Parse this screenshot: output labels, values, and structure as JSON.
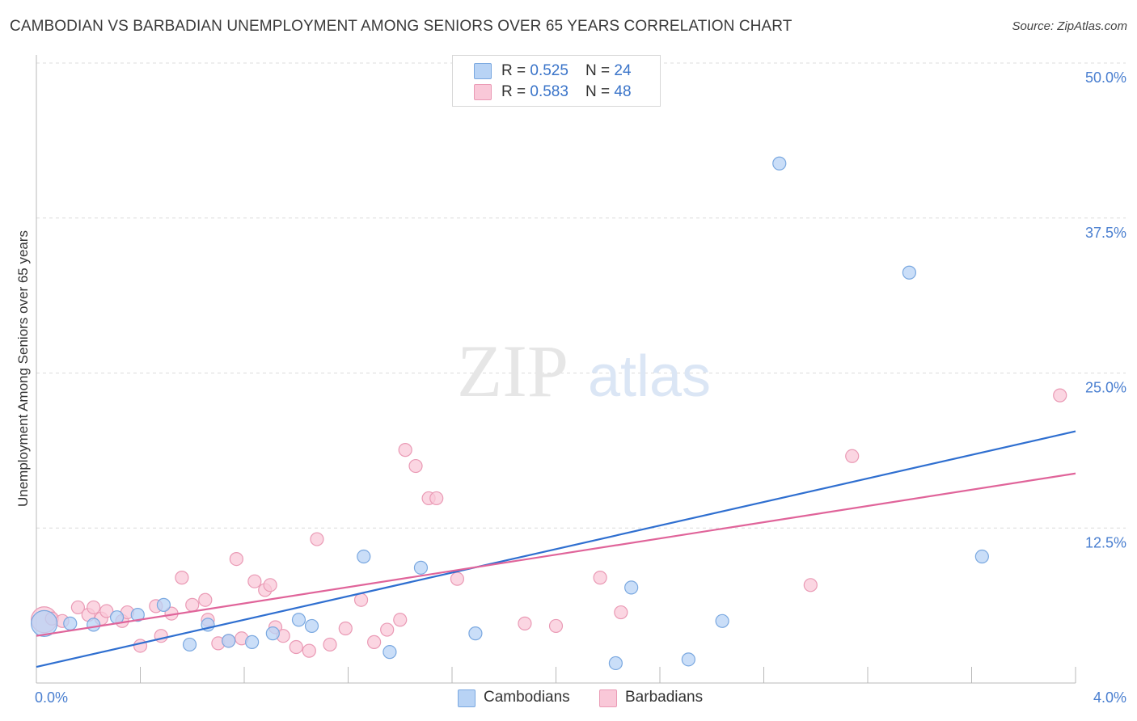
{
  "title": "CAMBODIAN VS BARBADIAN UNEMPLOYMENT AMONG SENIORS OVER 65 YEARS CORRELATION CHART",
  "source": "Source: ZipAtlas.com",
  "watermark": {
    "zip": "ZIP",
    "atlas": "atlas"
  },
  "colors": {
    "cambodians_fill": "#b8d3f5",
    "cambodians_stroke": "#7aa8e0",
    "cambodians_line": "#2f6fd0",
    "barbadians_fill": "#f9c8d8",
    "barbadians_stroke": "#ea9ab5",
    "barbadians_line": "#e0649a",
    "tick_text": "#4a7fd0",
    "grid": "#dcdcdc"
  },
  "legend": {
    "cambodians": {
      "r_label": "R = ",
      "r_value": "0.525",
      "n_label": "N = ",
      "n_value": "24"
    },
    "barbadians": {
      "r_label": "R = ",
      "r_value": "0.583",
      "n_label": "N = ",
      "n_value": "48"
    }
  },
  "bottom_legend": {
    "cambodians": "Cambodians",
    "barbadians": "Barbadians"
  },
  "chart_data": {
    "type": "scatter",
    "title": "CAMBODIAN VS BARBADIAN UNEMPLOYMENT AMONG SENIORS OVER 65 YEARS CORRELATION CHART",
    "xlabel": "",
    "ylabel": "Unemployment Among Seniors over 65 years",
    "xlim": [
      0,
      4.0
    ],
    "ylim": [
      0,
      50
    ],
    "x_tick_labels": [
      "0.0%",
      "4.0%"
    ],
    "y_ticks": [
      12.5,
      25.0,
      37.5,
      50.0
    ],
    "y_tick_labels": [
      "12.5%",
      "25.0%",
      "37.5%",
      "50.0%"
    ],
    "grid": true,
    "series": [
      {
        "name": "Cambodians",
        "r": 0.525,
        "n": 24,
        "trend": {
          "x": [
            0,
            4.0
          ],
          "y": [
            1.3,
            20.3
          ]
        },
        "points": [
          {
            "x": 0.03,
            "y": 4.8,
            "big": true
          },
          {
            "x": 0.13,
            "y": 4.8
          },
          {
            "x": 0.22,
            "y": 4.7
          },
          {
            "x": 0.31,
            "y": 5.3
          },
          {
            "x": 0.39,
            "y": 5.5
          },
          {
            "x": 0.49,
            "y": 6.3
          },
          {
            "x": 0.59,
            "y": 3.1
          },
          {
            "x": 0.66,
            "y": 4.7
          },
          {
            "x": 0.74,
            "y": 3.4
          },
          {
            "x": 0.83,
            "y": 3.3
          },
          {
            "x": 0.91,
            "y": 4.0
          },
          {
            "x": 1.01,
            "y": 5.1
          },
          {
            "x": 1.06,
            "y": 4.6
          },
          {
            "x": 1.26,
            "y": 10.2
          },
          {
            "x": 1.36,
            "y": 2.5
          },
          {
            "x": 1.48,
            "y": 9.3
          },
          {
            "x": 1.69,
            "y": 4.0
          },
          {
            "x": 2.23,
            "y": 1.6
          },
          {
            "x": 2.29,
            "y": 7.7
          },
          {
            "x": 2.51,
            "y": 1.9
          },
          {
            "x": 2.64,
            "y": 5.0
          },
          {
            "x": 2.86,
            "y": 41.9
          },
          {
            "x": 3.36,
            "y": 33.1
          },
          {
            "x": 3.64,
            "y": 10.2
          }
        ]
      },
      {
        "name": "Barbadians",
        "r": 0.583,
        "n": 48,
        "trend": {
          "x": [
            0,
            4.0
          ],
          "y": [
            3.8,
            16.9
          ]
        },
        "points": [
          {
            "x": 0.03,
            "y": 5.1,
            "big": true
          },
          {
            "x": 0.06,
            "y": 5.2
          },
          {
            "x": 0.1,
            "y": 5.0
          },
          {
            "x": 0.16,
            "y": 6.1
          },
          {
            "x": 0.2,
            "y": 5.5
          },
          {
            "x": 0.22,
            "y": 6.1
          },
          {
            "x": 0.25,
            "y": 5.2
          },
          {
            "x": 0.27,
            "y": 5.8
          },
          {
            "x": 0.33,
            "y": 5.0
          },
          {
            "x": 0.35,
            "y": 5.7
          },
          {
            "x": 0.4,
            "y": 3.0
          },
          {
            "x": 0.46,
            "y": 6.2
          },
          {
            "x": 0.48,
            "y": 3.8
          },
          {
            "x": 0.52,
            "y": 5.6
          },
          {
            "x": 0.56,
            "y": 8.5
          },
          {
            "x": 0.6,
            "y": 6.3
          },
          {
            "x": 0.65,
            "y": 6.7
          },
          {
            "x": 0.66,
            "y": 5.1
          },
          {
            "x": 0.7,
            "y": 3.2
          },
          {
            "x": 0.74,
            "y": 3.4
          },
          {
            "x": 0.77,
            "y": 10.0
          },
          {
            "x": 0.79,
            "y": 3.6
          },
          {
            "x": 0.84,
            "y": 8.2
          },
          {
            "x": 0.88,
            "y": 7.5
          },
          {
            "x": 0.9,
            "y": 7.9
          },
          {
            "x": 0.92,
            "y": 4.5
          },
          {
            "x": 0.95,
            "y": 3.8
          },
          {
            "x": 1.0,
            "y": 2.9
          },
          {
            "x": 1.05,
            "y": 2.6
          },
          {
            "x": 1.08,
            "y": 11.6
          },
          {
            "x": 1.13,
            "y": 3.1
          },
          {
            "x": 1.19,
            "y": 4.4
          },
          {
            "x": 1.25,
            "y": 6.7
          },
          {
            "x": 1.3,
            "y": 3.3
          },
          {
            "x": 1.35,
            "y": 4.3
          },
          {
            "x": 1.4,
            "y": 5.1
          },
          {
            "x": 1.42,
            "y": 18.8
          },
          {
            "x": 1.46,
            "y": 17.5
          },
          {
            "x": 1.51,
            "y": 14.9
          },
          {
            "x": 1.54,
            "y": 14.9
          },
          {
            "x": 1.62,
            "y": 8.4
          },
          {
            "x": 1.88,
            "y": 4.8
          },
          {
            "x": 2.0,
            "y": 4.6
          },
          {
            "x": 2.17,
            "y": 8.5
          },
          {
            "x": 2.25,
            "y": 5.7
          },
          {
            "x": 2.98,
            "y": 7.9
          },
          {
            "x": 3.14,
            "y": 18.3
          },
          {
            "x": 3.94,
            "y": 23.2
          }
        ]
      }
    ]
  }
}
